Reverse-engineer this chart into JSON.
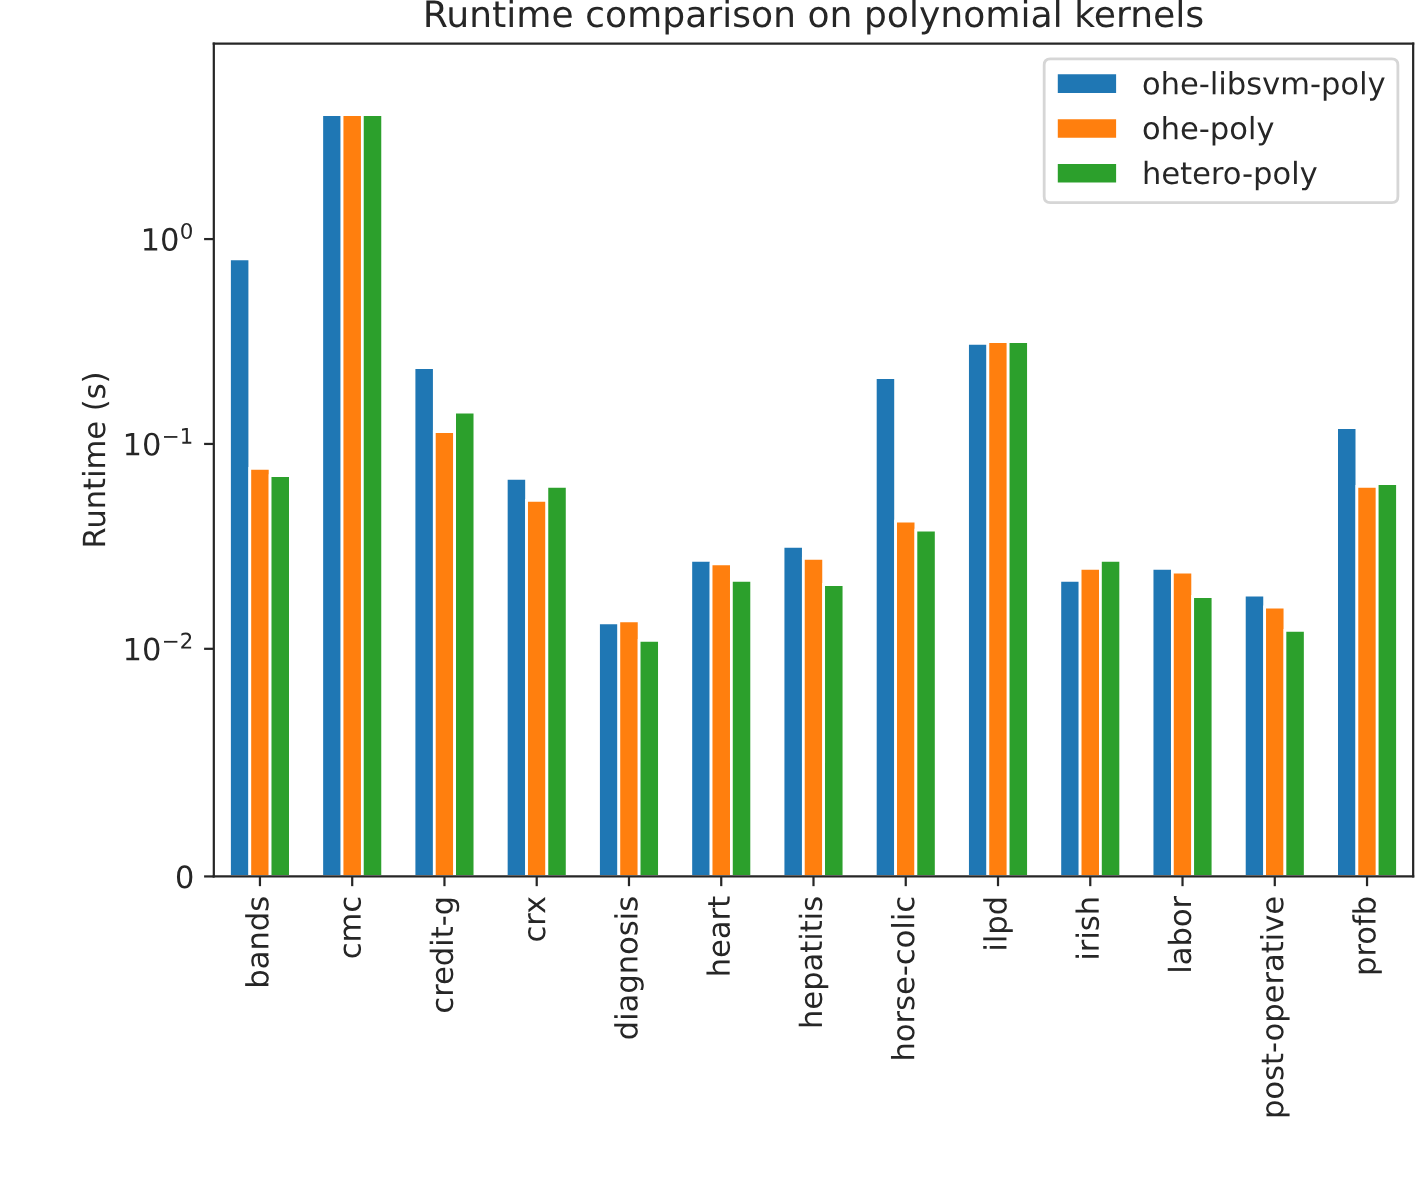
{
  "chart_data": {
    "type": "bar",
    "title": "Runtime comparison on polynomial kernels",
    "ylabel": "Runtime (s)",
    "categories": [
      "bands",
      "cmc",
      "credit-g",
      "crx",
      "diagnosis",
      "heart",
      "hepatitis",
      "horse-colic",
      "ilpd",
      "irish",
      "labor",
      "post-operative",
      "profb"
    ],
    "series": [
      {
        "name": "ohe-libsvm-poly",
        "color": "#1f77b4",
        "values": [
          0.8,
          4.05,
          0.236,
          0.068,
          0.0134,
          0.027,
          0.0316,
          0.211,
          0.31,
          0.0216,
          0.0247,
          0.0183,
          0.12
        ]
      },
      {
        "name": "ohe-poly",
        "color": "#ff7f0e",
        "values": [
          0.076,
          4.05,
          0.115,
          0.053,
          0.0137,
          0.026,
          0.0276,
          0.042,
          0.316,
          0.0247,
          0.0237,
          0.016,
          0.062
        ]
      },
      {
        "name": "hetero-poly",
        "color": "#2ca02c",
        "values": [
          0.07,
          4.05,
          0.143,
          0.062,
          0.011,
          0.0216,
          0.0206,
          0.038,
          0.316,
          0.027,
          0.018,
          0.0123,
          0.064
        ]
      }
    ],
    "log": "y",
    "ylim": [
      0,
      9
    ],
    "yticks": [
      0,
      {
        "value": 0.01,
        "label": "10$^{−2}$"
      },
      {
        "value": 0.1,
        "label": "10$^{−1}$"
      },
      {
        "value": 1,
        "label": "10$^{0}$"
      }
    ],
    "legend": "top right"
  }
}
